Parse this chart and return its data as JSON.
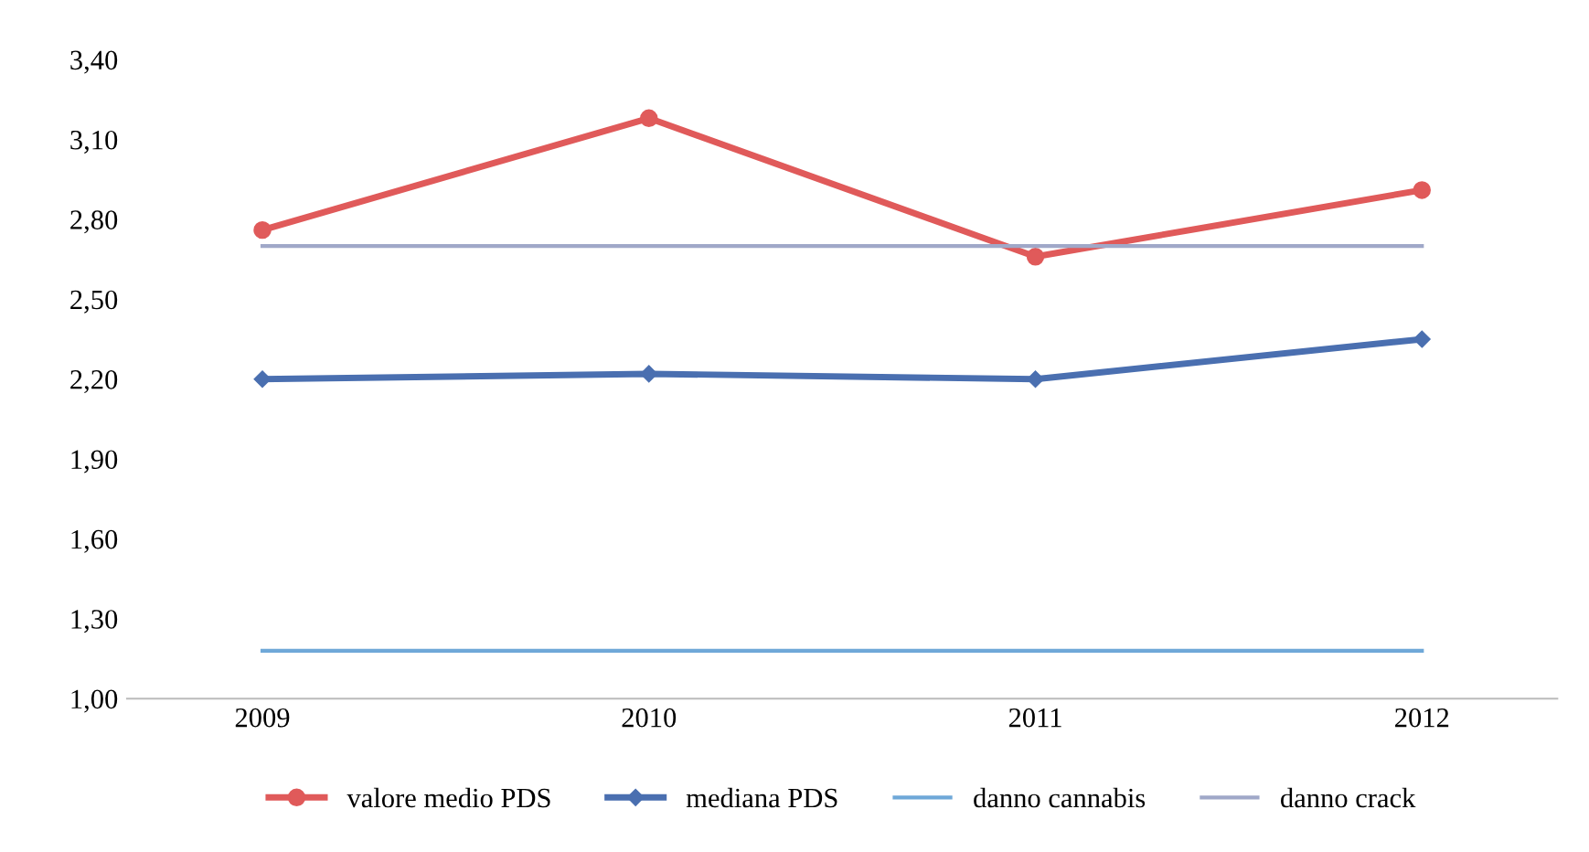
{
  "chart_data": {
    "type": "line",
    "categories": [
      "2009",
      "2010",
      "2011",
      "2012"
    ],
    "series": [
      {
        "name": "valore medio PDS",
        "color": "#e05a5a",
        "values": [
          2.76,
          3.18,
          2.66,
          2.91
        ],
        "marker": "circle"
      },
      {
        "name": "mediana PDS",
        "color": "#4a6fb0",
        "values": [
          2.2,
          2.22,
          2.2,
          2.35
        ],
        "marker": "diamond"
      },
      {
        "name": "danno cannabis",
        "color": "#6fa8d8",
        "values": [
          1.18,
          1.18,
          1.18,
          1.18
        ],
        "marker": "none"
      },
      {
        "name": "danno crack",
        "color": "#a0a8c8",
        "values": [
          2.7,
          2.7,
          2.7,
          2.7
        ],
        "marker": "none"
      }
    ],
    "ylim": [
      1.0,
      3.4
    ],
    "yticks": [
      {
        "value": 1.0,
        "label": "1,00"
      },
      {
        "value": 1.3,
        "label": "1,30"
      },
      {
        "value": 1.6,
        "label": "1,60"
      },
      {
        "value": 1.9,
        "label": "1,90"
      },
      {
        "value": 2.2,
        "label": "2,20"
      },
      {
        "value": 2.5,
        "label": "2,50"
      },
      {
        "value": 2.8,
        "label": "2,80"
      },
      {
        "value": 3.1,
        "label": "3,10"
      },
      {
        "value": 3.4,
        "label": "3,40"
      }
    ],
    "grid": false,
    "legend": "bottom"
  }
}
